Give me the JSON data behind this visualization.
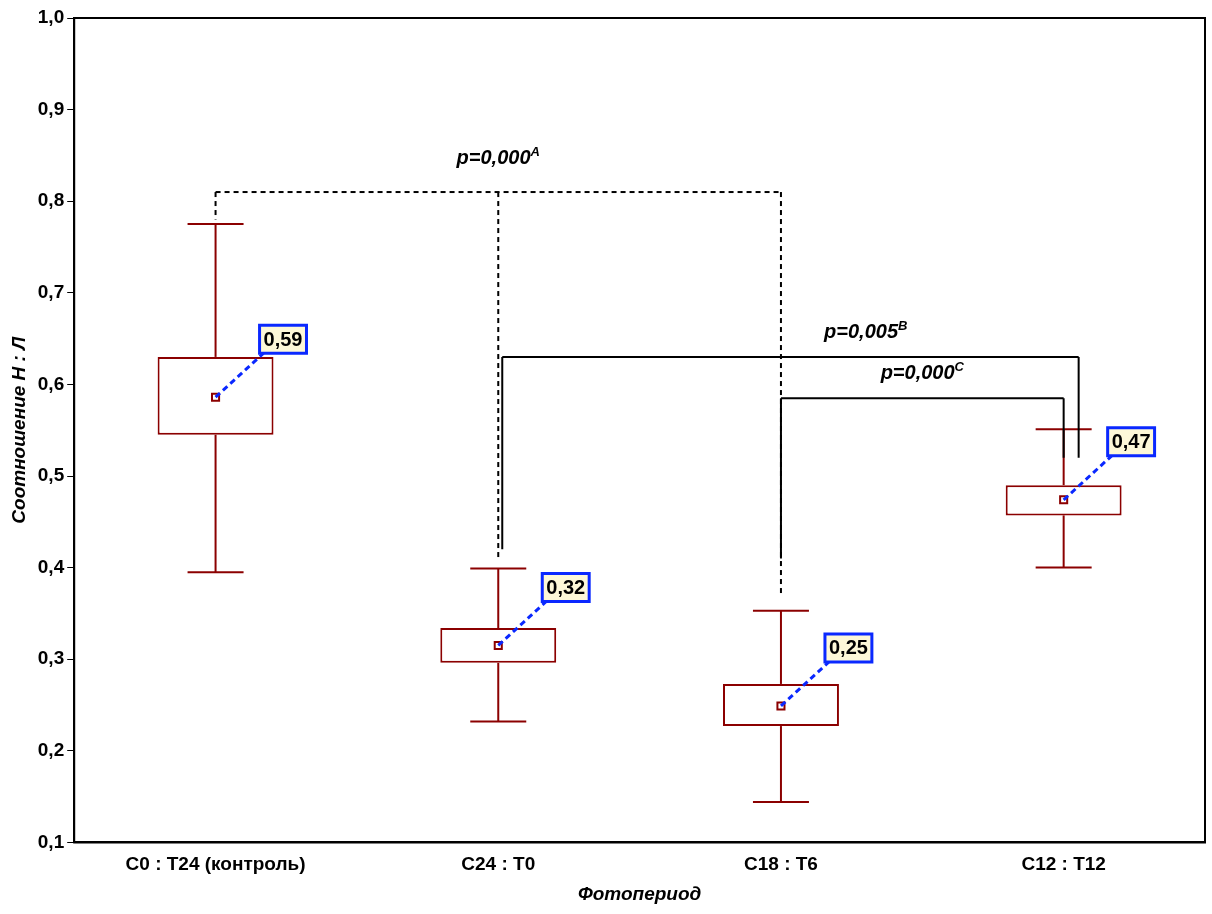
{
  "chart_data": {
    "type": "box",
    "xlabel": "Фотопериод",
    "ylabel": "Соотношение Н : Л",
    "categories": [
      "C0 : T24 (контроль)",
      "C24 : T0",
      "C18 : T6",
      "C12 : T12"
    ],
    "color": "#8b0000",
    "boxes": [
      {
        "low": 0.395,
        "q1": 0.545,
        "q3": 0.63,
        "high": 0.775,
        "mean": 0.586
      },
      {
        "low": 0.232,
        "q1": 0.296,
        "q3": 0.334,
        "high": 0.399,
        "mean": 0.315
      },
      {
        "low": 0.144,
        "q1": 0.227,
        "q3": 0.273,
        "high": 0.353,
        "mean": 0.249
      },
      {
        "low": 0.4,
        "q1": 0.457,
        "q3": 0.49,
        "high": 0.551,
        "mean": 0.474
      }
    ],
    "value_labels": [
      "0,59",
      "0,32",
      "0,25",
      "0,47"
    ],
    "ylim": [
      0.1,
      1.0
    ],
    "yticks": [
      {
        "value": 0.1,
        "label": "0,1"
      },
      {
        "value": 0.2,
        "label": "0,2"
      },
      {
        "value": 0.3,
        "label": "0,3"
      },
      {
        "value": 0.4,
        "label": "0,4"
      },
      {
        "value": 0.5,
        "label": "0,5"
      },
      {
        "value": 0.6,
        "label": "0,6"
      },
      {
        "value": 0.7,
        "label": "0,7"
      },
      {
        "value": 0.8,
        "label": "0,8"
      },
      {
        "value": 0.9,
        "label": "0,9"
      },
      {
        "value": 1.0,
        "label": "1,0"
      }
    ],
    "grid": false,
    "annotations": [
      "p=0,000$^{A}$",
      "p=0,005$^{B}$",
      "p=0,000$^{C}$"
    ]
  }
}
